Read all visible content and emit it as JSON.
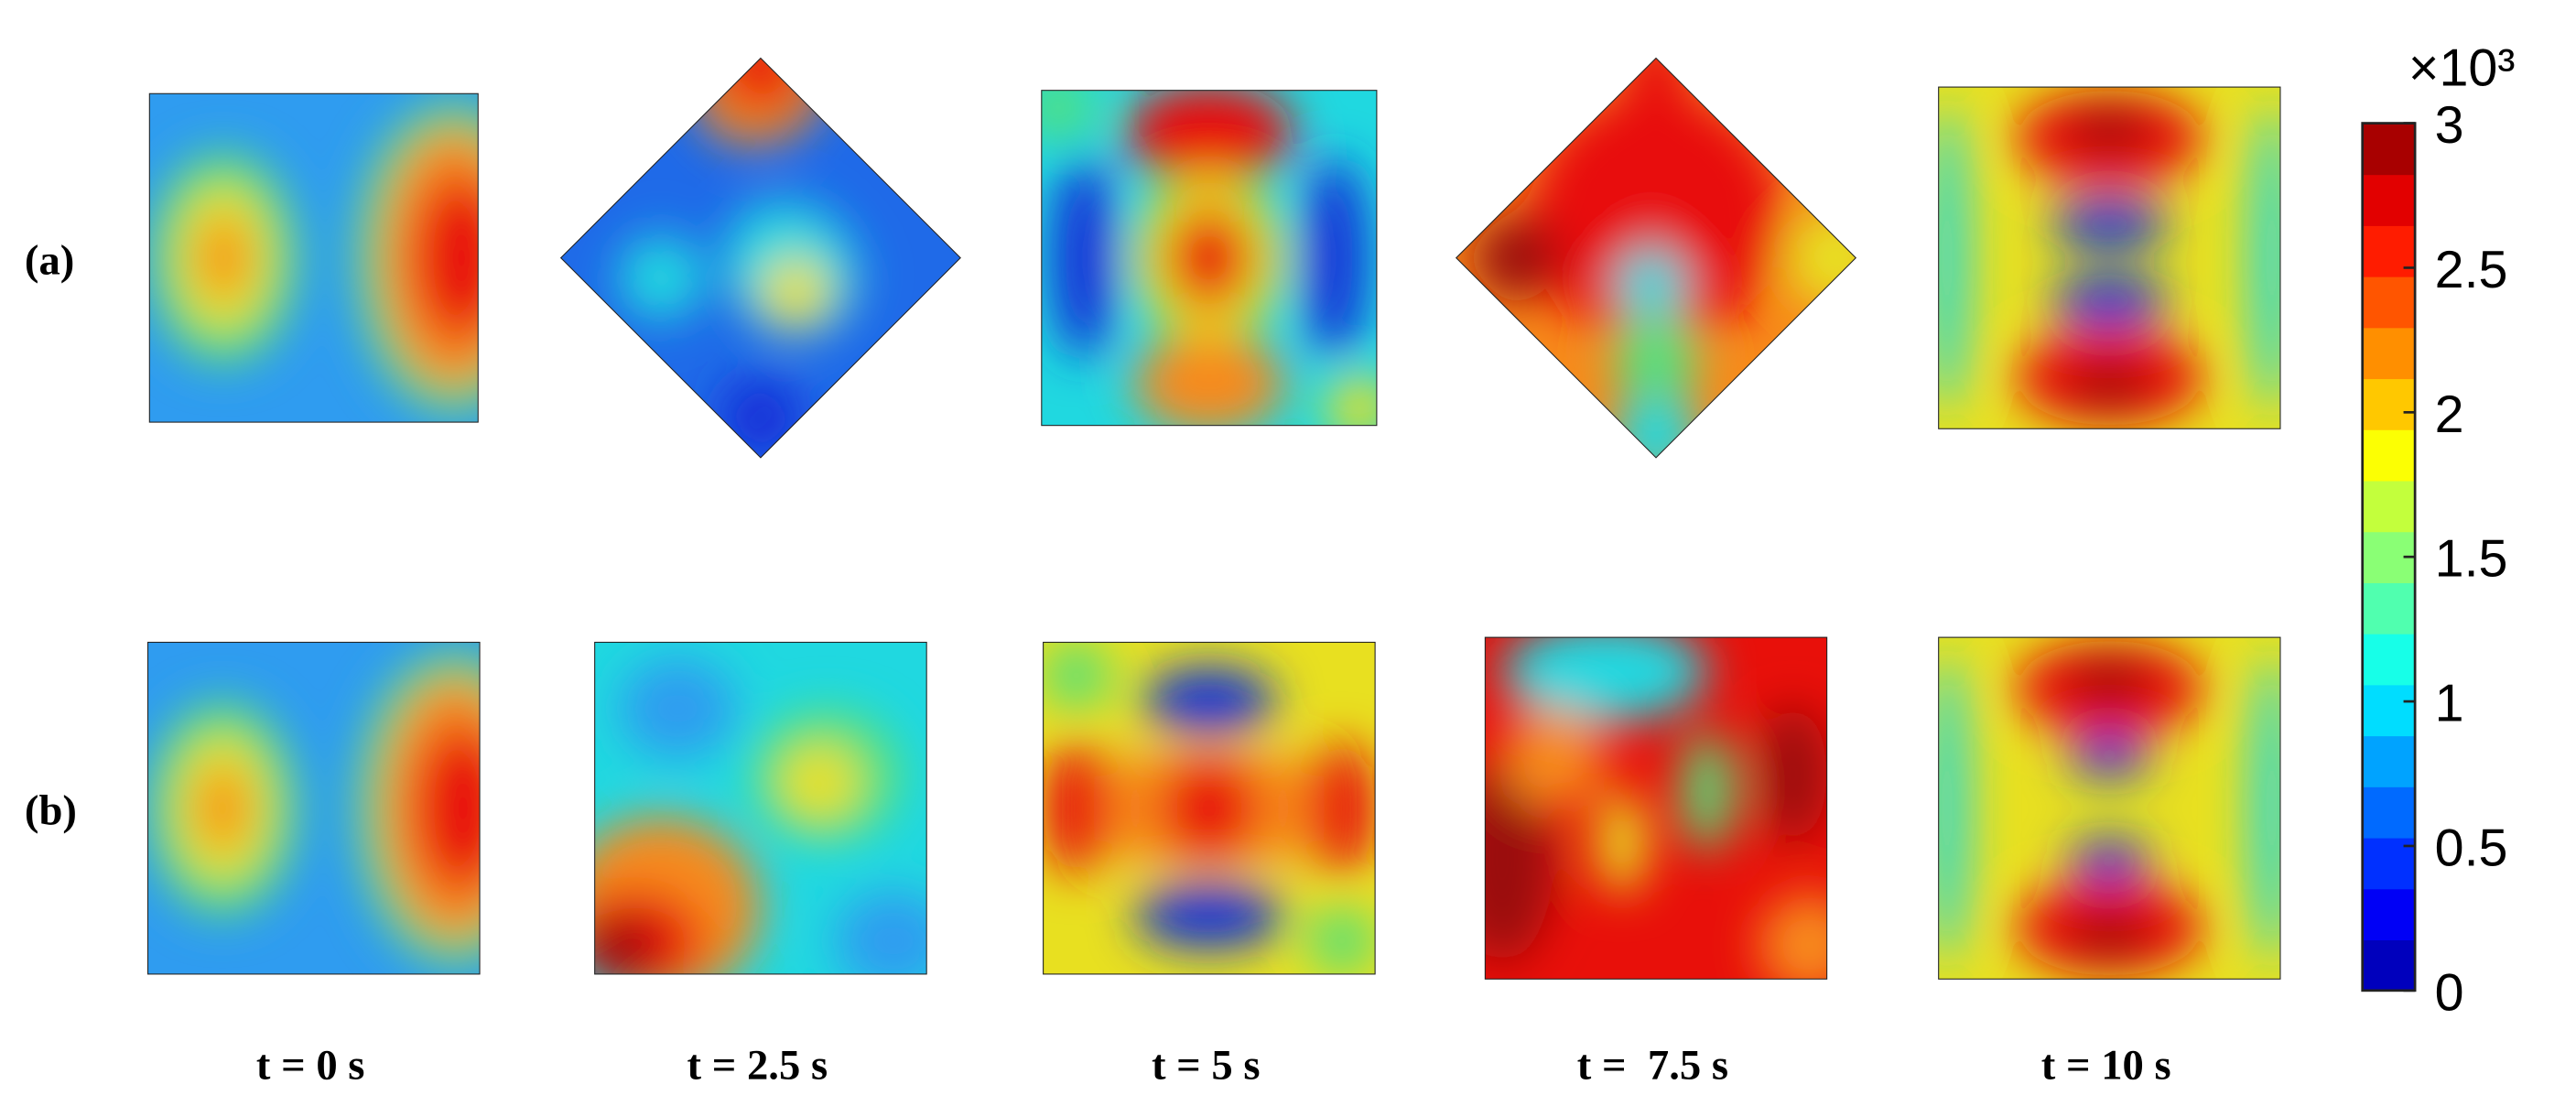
{
  "rows": [
    "(a)",
    "(b)"
  ],
  "times": [
    "t = 0 s",
    "t = 2.5 s",
    "t = 5 s",
    "t =  7.5 s",
    "t = 10 s"
  ],
  "colorbar": {
    "multiplier": "×10³",
    "lim": [
      0,
      3
    ],
    "ticks": [
      0,
      0.5,
      1,
      1.5,
      2,
      2.5,
      3
    ]
  }
}
